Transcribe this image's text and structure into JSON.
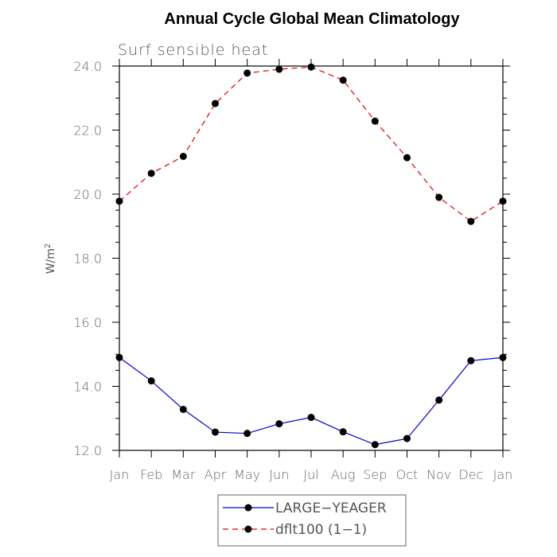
{
  "chart_data": {
    "type": "line",
    "title": "Annual Cycle Global Mean Climatology",
    "subtitle": "Surf sensible heat",
    "ylabel_base": "W/m",
    "ylabel_sup": "2",
    "xlabel": "",
    "categories": [
      "Jan",
      "Feb",
      "Mar",
      "Apr",
      "May",
      "Jun",
      "Jul",
      "Aug",
      "Sep",
      "Oct",
      "Nov",
      "Dec",
      "Jan"
    ],
    "ylim": [
      12.0,
      24.0
    ],
    "yticks": [
      "12.0",
      "14.0",
      "16.0",
      "18.0",
      "20.0",
      "22.0",
      "24.0"
    ],
    "legend_placement": "bottom",
    "grid": false,
    "series": [
      {
        "name": "LARGE−YEAGER",
        "color": "#0000cc",
        "dash": "solid",
        "values": [
          14.9,
          14.17,
          13.28,
          12.57,
          12.53,
          12.83,
          13.03,
          12.58,
          12.18,
          12.37,
          13.57,
          14.8,
          14.9
        ]
      },
      {
        "name": "dflt100 (1−1)",
        "color": "#e00000",
        "dash": "dashed",
        "values": [
          19.78,
          20.65,
          21.18,
          22.83,
          23.78,
          23.9,
          23.97,
          23.56,
          22.28,
          21.14,
          19.9,
          19.15,
          19.78
        ]
      }
    ]
  }
}
